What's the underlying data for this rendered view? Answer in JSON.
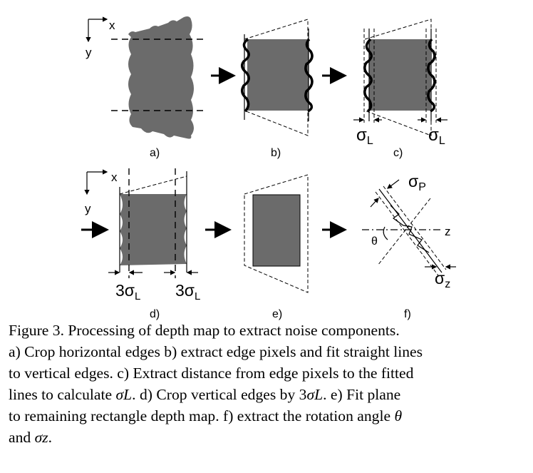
{
  "panels": {
    "a": {
      "label": "a)",
      "axis_x": "x",
      "axis_y": "y"
    },
    "b": {
      "label": "b)"
    },
    "c": {
      "label": "c)",
      "sigma_left": "σ",
      "sigma_right": "σ",
      "sub": "L"
    },
    "d": {
      "label": "d)",
      "axis_x": "x",
      "axis_y": "y",
      "crop_left": "3σ",
      "crop_right": "3σ",
      "sub": "L"
    },
    "e": {
      "label": "e)"
    },
    "f": {
      "label": "f)",
      "sigma_p": "σ",
      "sigma_p_sub": "P",
      "sigma_z": "σ",
      "sigma_z_sub": "z",
      "z_axis": "z",
      "theta": "θ"
    }
  },
  "caption": {
    "lines": [
      "Figure 3.  Processing of depth map to extract noise components.",
      "a) Crop horizontal edges b) extract edge pixels and fit straight lines",
      "to vertical edges. c) Extract distance from edge pixels to the fitted",
      "lines to calculate ",
      ". d) Crop vertical edges by 3",
      ". e) Fit plane",
      "to remaining rectangle depth map.  f) extract the rotation angle ",
      "and "
    ],
    "sym_sigma_l": "σL",
    "sym_sigma_l_2": "σL",
    "sym_theta": "θ",
    "sym_sigma_z": "σz",
    "end": "."
  }
}
